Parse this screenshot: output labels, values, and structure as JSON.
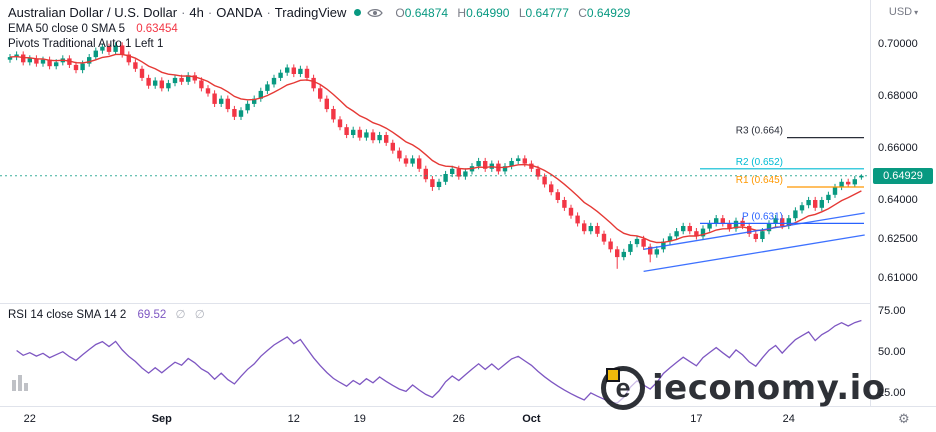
{
  "header": {
    "symbol": "Australian Dollar / U.S. Dollar",
    "sep": "·",
    "interval": "4h",
    "exchange": "OANDA",
    "platform": "TradingView",
    "ohlc": {
      "o_label": "O",
      "o": "0.64874",
      "h_label": "H",
      "h": "0.64990",
      "l_label": "L",
      "l": "0.64777",
      "c_label": "C",
      "c": "0.64929"
    }
  },
  "indicators": {
    "ema_label": "EMA 50 close 0 SMA 5",
    "ema_value": "0.63454",
    "pivots_label": "Pivots Traditional Auto 1 Left 1",
    "rsi_label": "RSI 14 close SMA 14 2",
    "rsi_value": "69.52",
    "rsi_empty": "∅"
  },
  "price_axis": {
    "currency_label": "USD"
  },
  "watermark": {
    "text": "ieconomy.io",
    "logo_letter": "e"
  },
  "chart_data": {
    "type": "candlestick",
    "symbol": "Australian Dollar / U.S. Dollar",
    "interval": "4h",
    "exchange": "OANDA",
    "ylim": [
      0.6015,
      0.7035
    ],
    "current_price": 0.64929,
    "current_price_label": "0.64929",
    "price_axis_labels": [
      {
        "p": 0.7,
        "text": "0.70000"
      },
      {
        "p": 0.68,
        "text": "0.68000"
      },
      {
        "p": 0.66,
        "text": "0.66000"
      },
      {
        "p": 0.64,
        "text": "0.64000"
      },
      {
        "p": 0.625,
        "text": "0.62500"
      },
      {
        "p": 0.61,
        "text": "0.61000"
      }
    ],
    "time_ticks": [
      {
        "label": "22",
        "i": 3
      },
      {
        "label": "Sep",
        "i": 23,
        "major": true
      },
      {
        "label": "12",
        "i": 43
      },
      {
        "label": "19",
        "i": 53
      },
      {
        "label": "26",
        "i": 68
      },
      {
        "label": "Oct",
        "i": 79,
        "major": true
      },
      {
        "label": "17",
        "i": 104
      },
      {
        "label": "24",
        "i": 118
      }
    ],
    "candles": [
      [
        0.694,
        0.6962,
        0.6928,
        0.695
      ],
      [
        0.695,
        0.6972,
        0.6938,
        0.696
      ],
      [
        0.696,
        0.6972,
        0.6918,
        0.693
      ],
      [
        0.693,
        0.6957,
        0.6918,
        0.6945
      ],
      [
        0.6945,
        0.6957,
        0.6913,
        0.6925
      ],
      [
        0.6925,
        0.6952,
        0.6913,
        0.694
      ],
      [
        0.694,
        0.6952,
        0.6903,
        0.6915
      ],
      [
        0.6915,
        0.6942,
        0.6903,
        0.693
      ],
      [
        0.693,
        0.6957,
        0.6918,
        0.6945
      ],
      [
        0.6945,
        0.6957,
        0.6908,
        0.692
      ],
      [
        0.692,
        0.6932,
        0.6888,
        0.69
      ],
      [
        0.69,
        0.6937,
        0.6888,
        0.6925
      ],
      [
        0.6925,
        0.6962,
        0.6913,
        0.695
      ],
      [
        0.695,
        0.6987,
        0.6938,
        0.6975
      ],
      [
        0.6975,
        0.7002,
        0.6963,
        0.699
      ],
      [
        0.699,
        0.7002,
        0.6958,
        0.697
      ],
      [
        0.697,
        0.7007,
        0.6958,
        0.6995
      ],
      [
        0.6995,
        0.7007,
        0.6948,
        0.696
      ],
      [
        0.696,
        0.6972,
        0.6918,
        0.693
      ],
      [
        0.693,
        0.6942,
        0.6893,
        0.6905
      ],
      [
        0.6905,
        0.6917,
        0.6858,
        0.687
      ],
      [
        0.687,
        0.6882,
        0.6828,
        0.684
      ],
      [
        0.684,
        0.6872,
        0.6828,
        0.686
      ],
      [
        0.686,
        0.6872,
        0.6818,
        0.683
      ],
      [
        0.683,
        0.6862,
        0.6818,
        0.685
      ],
      [
        0.685,
        0.6882,
        0.6838,
        0.687
      ],
      [
        0.687,
        0.6882,
        0.6843,
        0.6855
      ],
      [
        0.6855,
        0.6892,
        0.6843,
        0.688
      ],
      [
        0.688,
        0.6892,
        0.6848,
        0.686
      ],
      [
        0.686,
        0.6872,
        0.6818,
        0.683
      ],
      [
        0.683,
        0.6842,
        0.6798,
        0.681
      ],
      [
        0.681,
        0.6822,
        0.6758,
        0.677
      ],
      [
        0.677,
        0.6802,
        0.6758,
        0.679
      ],
      [
        0.679,
        0.6802,
        0.6738,
        0.675
      ],
      [
        0.675,
        0.6762,
        0.6708,
        0.672
      ],
      [
        0.672,
        0.6757,
        0.6708,
        0.6745
      ],
      [
        0.6745,
        0.6782,
        0.6733,
        0.677
      ],
      [
        0.677,
        0.6802,
        0.6758,
        0.679
      ],
      [
        0.679,
        0.6832,
        0.6778,
        0.682
      ],
      [
        0.682,
        0.6857,
        0.6808,
        0.6845
      ],
      [
        0.6845,
        0.6882,
        0.6833,
        0.687
      ],
      [
        0.687,
        0.6902,
        0.6858,
        0.689
      ],
      [
        0.689,
        0.6922,
        0.6878,
        0.691
      ],
      [
        0.691,
        0.6922,
        0.6873,
        0.6885
      ],
      [
        0.6885,
        0.6917,
        0.6873,
        0.6905
      ],
      [
        0.6905,
        0.6917,
        0.6858,
        0.687
      ],
      [
        0.687,
        0.6882,
        0.6818,
        0.683
      ],
      [
        0.683,
        0.6842,
        0.6778,
        0.679
      ],
      [
        0.679,
        0.6802,
        0.6738,
        0.675
      ],
      [
        0.675,
        0.6762,
        0.6698,
        0.671
      ],
      [
        0.671,
        0.6722,
        0.6668,
        0.668
      ],
      [
        0.668,
        0.6692,
        0.6638,
        0.665
      ],
      [
        0.665,
        0.6682,
        0.6638,
        0.667
      ],
      [
        0.667,
        0.6682,
        0.6628,
        0.664
      ],
      [
        0.664,
        0.6672,
        0.6628,
        0.666
      ],
      [
        0.666,
        0.6672,
        0.6618,
        0.663
      ],
      [
        0.663,
        0.6662,
        0.6618,
        0.665
      ],
      [
        0.665,
        0.6662,
        0.6608,
        0.662
      ],
      [
        0.662,
        0.6632,
        0.6578,
        0.659
      ],
      [
        0.659,
        0.6602,
        0.6548,
        0.656
      ],
      [
        0.656,
        0.6572,
        0.6528,
        0.654
      ],
      [
        0.654,
        0.6572,
        0.6528,
        0.656
      ],
      [
        0.656,
        0.6572,
        0.6508,
        0.652
      ],
      [
        0.652,
        0.6532,
        0.6468,
        0.648
      ],
      [
        0.648,
        0.6492,
        0.6435,
        0.645
      ],
      [
        0.645,
        0.6482,
        0.6438,
        0.647
      ],
      [
        0.647,
        0.6512,
        0.6458,
        0.65
      ],
      [
        0.65,
        0.6532,
        0.6488,
        0.652
      ],
      [
        0.652,
        0.6532,
        0.6478,
        0.649
      ],
      [
        0.649,
        0.6522,
        0.6478,
        0.651
      ],
      [
        0.651,
        0.6542,
        0.6498,
        0.653
      ],
      [
        0.653,
        0.6562,
        0.6518,
        0.655
      ],
      [
        0.655,
        0.6562,
        0.6508,
        0.652
      ],
      [
        0.652,
        0.6552,
        0.6508,
        0.654
      ],
      [
        0.654,
        0.6552,
        0.6498,
        0.651
      ],
      [
        0.651,
        0.6542,
        0.6498,
        0.653
      ],
      [
        0.653,
        0.6562,
        0.6518,
        0.655
      ],
      [
        0.655,
        0.6572,
        0.6538,
        0.656
      ],
      [
        0.656,
        0.6572,
        0.6528,
        0.654
      ],
      [
        0.654,
        0.6552,
        0.6508,
        0.652
      ],
      [
        0.652,
        0.6532,
        0.6478,
        0.649
      ],
      [
        0.649,
        0.6502,
        0.6448,
        0.646
      ],
      [
        0.646,
        0.6472,
        0.6418,
        0.643
      ],
      [
        0.643,
        0.6442,
        0.6388,
        0.64
      ],
      [
        0.64,
        0.6412,
        0.6358,
        0.637
      ],
      [
        0.637,
        0.6382,
        0.6328,
        0.634
      ],
      [
        0.634,
        0.6352,
        0.6298,
        0.631
      ],
      [
        0.631,
        0.6322,
        0.6268,
        0.628
      ],
      [
        0.628,
        0.6312,
        0.6268,
        0.63
      ],
      [
        0.63,
        0.6312,
        0.6258,
        0.627
      ],
      [
        0.627,
        0.6282,
        0.6228,
        0.624
      ],
      [
        0.624,
        0.6252,
        0.6198,
        0.621
      ],
      [
        0.621,
        0.6222,
        0.6135,
        0.618
      ],
      [
        0.618,
        0.6212,
        0.6168,
        0.62
      ],
      [
        0.62,
        0.6242,
        0.6188,
        0.623
      ],
      [
        0.623,
        0.6262,
        0.6218,
        0.625
      ],
      [
        0.625,
        0.6262,
        0.6208,
        0.622
      ],
      [
        0.622,
        0.6232,
        0.616,
        0.619
      ],
      [
        0.619,
        0.6222,
        0.6178,
        0.621
      ],
      [
        0.621,
        0.6252,
        0.6198,
        0.624
      ],
      [
        0.624,
        0.6272,
        0.6228,
        0.626
      ],
      [
        0.626,
        0.6292,
        0.6248,
        0.628
      ],
      [
        0.628,
        0.6312,
        0.6268,
        0.63
      ],
      [
        0.63,
        0.6312,
        0.6268,
        0.628
      ],
      [
        0.628,
        0.6292,
        0.6248,
        0.626
      ],
      [
        0.626,
        0.6302,
        0.6248,
        0.629
      ],
      [
        0.629,
        0.6322,
        0.6278,
        0.631
      ],
      [
        0.631,
        0.6342,
        0.6298,
        0.633
      ],
      [
        0.633,
        0.6342,
        0.6298,
        0.631
      ],
      [
        0.631,
        0.6322,
        0.6278,
        0.629
      ],
      [
        0.629,
        0.6332,
        0.6278,
        0.632
      ],
      [
        0.632,
        0.6332,
        0.6288,
        0.63
      ],
      [
        0.63,
        0.6312,
        0.6258,
        0.627
      ],
      [
        0.627,
        0.6282,
        0.6238,
        0.625
      ],
      [
        0.625,
        0.6292,
        0.6238,
        0.628
      ],
      [
        0.628,
        0.6322,
        0.6268,
        0.631
      ],
      [
        0.631,
        0.6342,
        0.6298,
        0.633
      ],
      [
        0.633,
        0.6342,
        0.6288,
        0.63
      ],
      [
        0.63,
        0.6342,
        0.6288,
        0.633
      ],
      [
        0.633,
        0.6372,
        0.6318,
        0.636
      ],
      [
        0.636,
        0.6392,
        0.6348,
        0.638
      ],
      [
        0.638,
        0.6412,
        0.6368,
        0.64
      ],
      [
        0.64,
        0.6412,
        0.6358,
        0.637
      ],
      [
        0.637,
        0.6412,
        0.6358,
        0.64
      ],
      [
        0.64,
        0.6432,
        0.6388,
        0.642
      ],
      [
        0.642,
        0.6462,
        0.6408,
        0.645
      ],
      [
        0.645,
        0.6482,
        0.6438,
        0.647
      ],
      [
        0.647,
        0.6482,
        0.6448,
        0.646
      ],
      [
        0.646,
        0.6492,
        0.6448,
        0.648
      ],
      [
        0.6487,
        0.6499,
        0.6478,
        0.6493
      ]
    ],
    "ema": {
      "label": "EMA 50",
      "color": "#E53935",
      "render_period": 10
    },
    "pivots": [
      {
        "name": "R3",
        "value": 0.664,
        "label": "R3 (0.664)",
        "color": "#2A2E39",
        "line_x1": 787
      },
      {
        "name": "R2",
        "value": 0.652,
        "label": "R2 (0.652)",
        "color": "#00BCD4",
        "line_x1": 700
      },
      {
        "name": "R1",
        "value": 0.645,
        "label": "R1 (0.645)",
        "color": "#FF9800",
        "line_x1": 787
      },
      {
        "name": "P",
        "value": 0.631,
        "label": "P (0.631)",
        "color": "#2962FF",
        "line_x1": 700
      }
    ],
    "channel": {
      "color": "#2962FF",
      "lines": [
        {
          "i1": 96,
          "p1": 0.6125,
          "i2": 129.5,
          "p2": 0.6265
        },
        {
          "i1": 96,
          "p1": 0.621,
          "i2": 129.5,
          "p2": 0.635
        }
      ]
    },
    "rsi": {
      "period": 14,
      "color": "#7E57C2",
      "last_value": 69.52,
      "levels": [
        {
          "v": 75,
          "text": "75.00"
        },
        {
          "v": 50,
          "text": "50.00"
        },
        {
          "v": 25,
          "text": "25.00"
        }
      ]
    },
    "colors": {
      "up": "#089981",
      "down": "#F23645"
    }
  }
}
